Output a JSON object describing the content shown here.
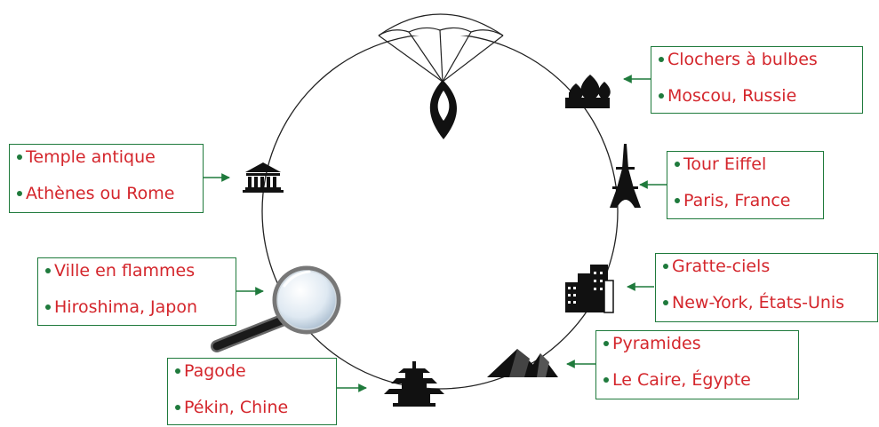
{
  "colors": {
    "text": "#d4262c",
    "frame": "#1f7a3c",
    "icon": "#111111",
    "ring": "#222222"
  },
  "landmarks": [
    {
      "icon": "onion-domes-icon",
      "line1": "Clochers à bulbes",
      "line2": "Moscou, Russie"
    },
    {
      "icon": "eiffel-tower-icon",
      "line1": "Tour Eiffel",
      "line2": "Paris, France"
    },
    {
      "icon": "skyscrapers-icon",
      "line1": "Gratte-ciels",
      "line2": "New-York, États-Unis"
    },
    {
      "icon": "pyramids-icon",
      "line1": "Pyramides",
      "line2": "Le Caire, Égypte"
    },
    {
      "icon": "pagoda-icon",
      "line1": "Pagode",
      "line2": "Pékin, Chine"
    },
    {
      "icon": "magnifying-glass-icon",
      "line1": "Ville en flammes",
      "line2": "Hiroshima, Japon"
    },
    {
      "icon": "ancient-temple-icon",
      "line1": "Temple antique",
      "line2": "Athènes ou Rome"
    }
  ],
  "parachute_icon": "parachute-icon"
}
